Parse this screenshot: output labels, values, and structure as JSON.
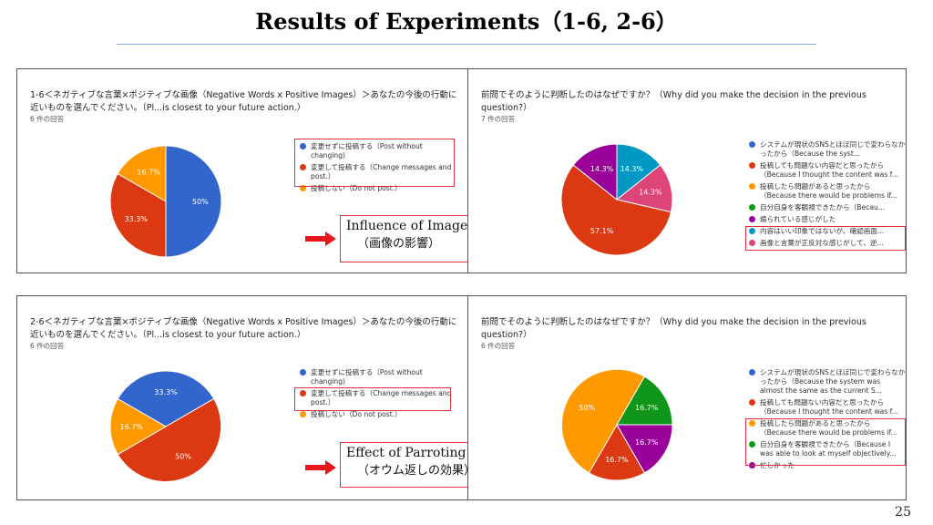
{
  "slide": {
    "title": "Results of Experiments（1-6, 2-6）",
    "page_number": "25"
  },
  "callouts": [
    {
      "line1": "Influence of Images",
      "line2": "（画像の影響）"
    },
    {
      "line1": "Effect of Parroting",
      "line2": "（オウム返しの効果）"
    }
  ],
  "colors": {
    "blue": "#3366cc",
    "red": "#dc3912",
    "orange": "#ff9900",
    "green": "#109618",
    "purple": "#990099",
    "teal": "#0099c6",
    "pink": "#dd4477",
    "highlight": "#e0303a"
  },
  "chart_data": [
    {
      "type": "pie",
      "title": "1-6＜ネガティブな言葉×ポジティブな画像（Negative Words x Positive Images）＞あなたの今後の行動に近いものを選んでください。（Pl...is closest to your future action.）",
      "response_count": "6 件の回答",
      "slices": [
        {
          "label": "変更せずに投稿する（Post without changing)",
          "value": 50,
          "display": "50%",
          "color": "#3366cc"
        },
        {
          "label": "変更して投稿する（Change messages and post.）",
          "value": 33.3,
          "display": "33.3%",
          "color": "#dc3912"
        },
        {
          "label": "投稿しない（Do not post.）",
          "value": 16.7,
          "display": "16.7%",
          "color": "#ff9900"
        }
      ],
      "legend_position": "right"
    },
    {
      "type": "pie",
      "title": "前問でそのように判断したのはなぜですか？（Why did you make the decision in the previous question?）",
      "response_count": "7 件の回答",
      "slices": [
        {
          "label": "システムが現状のSNSとほぼ同じで変わらなかったから（Because the syst...",
          "value": 0,
          "display": "",
          "color": "#3366cc"
        },
        {
          "label": "投稿しても問題ない内容だと思ったから（Because I thought the content was f...",
          "value": 57.1,
          "display": "57.1%",
          "color": "#dc3912"
        },
        {
          "label": "投稿したら問題があると思ったから（Because there would be problems if...",
          "value": 0,
          "display": "",
          "color": "#ff9900"
        },
        {
          "label": "自分自身を客観視できたから（Becau...",
          "value": 0,
          "display": "",
          "color": "#109618"
        },
        {
          "label": "煽られている感じがした",
          "value": 14.3,
          "display": "14.3%",
          "color": "#990099"
        },
        {
          "label": "内容はいい印象ではないが、確認画面...",
          "value": 14.3,
          "display": "14.3%",
          "color": "#0099c6"
        },
        {
          "label": "画像と言葉が正反対な感じがして、逆...",
          "value": 14.3,
          "display": "14.3%",
          "color": "#dd4477"
        }
      ],
      "legend_position": "right"
    },
    {
      "type": "pie",
      "title": "2-6＜ネガティブな言葉×ポジティブな画像（Negative Words x Positive Images）＞あなたの今後の行動に近いものを選んでください。（Pl...is closest to your future action.）",
      "response_count": "6 件の回答",
      "slices": [
        {
          "label": "変更せずに投稿する（Post without changing)",
          "value": 33.3,
          "display": "33.3%",
          "color": "#3366cc"
        },
        {
          "label": "変更して投稿する（Change messages and post.）",
          "value": 50,
          "display": "50%",
          "color": "#dc3912"
        },
        {
          "label": "投稿しない（Do not post.）",
          "value": 16.7,
          "display": "16.7%",
          "color": "#ff9900"
        }
      ],
      "legend_position": "right"
    },
    {
      "type": "pie",
      "title": "前問でそのように判断したのはなぜですか？（Why did you make the decision in the previous question?）",
      "response_count": "6 件の回答",
      "slices": [
        {
          "label": "システムが現状のSNSとほぼ同じで変わらなかったから（Because the system was almost the same as the current S...",
          "value": 0,
          "display": "",
          "color": "#3366cc"
        },
        {
          "label": "投稿しても問題ない内容だと思ったから（Because I thought the content was f...",
          "value": 16.7,
          "display": "16.7%",
          "color": "#dc3912"
        },
        {
          "label": "投稿したら問題があると思ったから（Because there would be problems if...",
          "value": 50,
          "display": "50%",
          "color": "#ff9900"
        },
        {
          "label": "自分自身を客観視できたから（Because I was able to look at myself objectively...",
          "value": 16.7,
          "display": "16.7%",
          "color": "#109618"
        },
        {
          "label": "忙しかった",
          "value": 16.7,
          "display": "16.7%",
          "color": "#990099"
        }
      ],
      "legend_position": "right"
    }
  ]
}
